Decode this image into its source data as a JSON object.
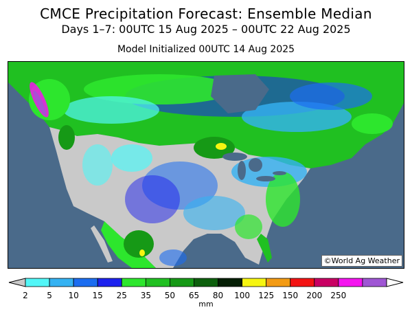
{
  "header": {
    "title": "CMCE Precipitation Forecast: Ensemble Median",
    "subtitle": "Days 1–7: 00UTC 15 Aug 2025 – 00UTC 22 Aug 2025",
    "initialized": "Model Initialized 00UTC 14 Aug 2025"
  },
  "map": {
    "region": "North America",
    "credit": "©World Ag Weather"
  },
  "legend": {
    "units": "mm",
    "ticks": [
      "2",
      "5",
      "10",
      "15",
      "25",
      "35",
      "50",
      "65",
      "80",
      "100",
      "125",
      "150",
      "200",
      "250"
    ],
    "colors": [
      "#52f6f7",
      "#35b2f2",
      "#1c6df0",
      "#1d22ee",
      "#2de62d",
      "#20c021",
      "#169916",
      "#0d600d",
      "#051f05",
      "#f6f511",
      "#f39b14",
      "#f31313",
      "#c90063",
      "#f414ef",
      "#9f56d4"
    ],
    "under_color": "#c9c9c9",
    "over_color": "#ffffff"
  },
  "colors": {
    "ocean": "#4a6a8a",
    "dry_land": "#c9c9c9"
  }
}
